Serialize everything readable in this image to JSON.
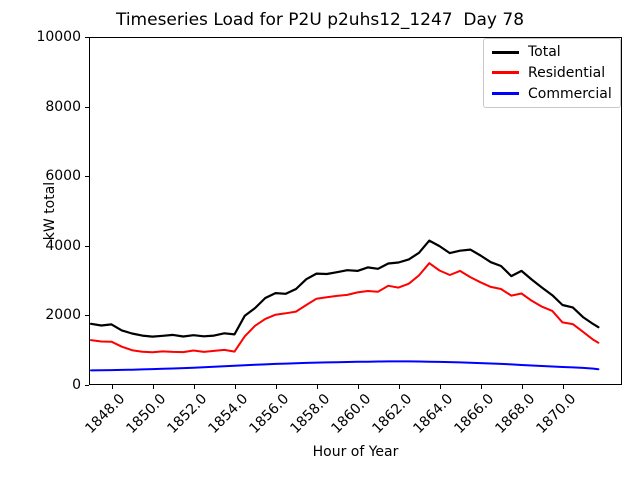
{
  "chart_data": {
    "type": "line",
    "title": "Timeseries Load for P2U p2uhs12_1247  Day 78",
    "xlabel": "Hour of Year",
    "ylabel": "kW total",
    "xlim": [
      1846.9,
      1872.9
    ],
    "ylim": [
      0,
      10000
    ],
    "grid": false,
    "legend_position": "upper right",
    "xticks": {
      "values": [
        1848,
        1850,
        1852,
        1854,
        1856,
        1858,
        1860,
        1862,
        1864,
        1866,
        1868,
        1870
      ],
      "labels": [
        "1848.0",
        "1850.0",
        "1852.0",
        "1854.0",
        "1856.0",
        "1858.0",
        "1860.0",
        "1862.0",
        "1864.0",
        "1866.0",
        "1868.0",
        "1870.0"
      ]
    },
    "yticks": {
      "values": [
        0,
        2000,
        4000,
        6000,
        8000,
        10000
      ],
      "labels": [
        "0",
        "2000",
        "4000",
        "6000",
        "8000",
        "10000"
      ]
    },
    "x": [
      1847.0,
      1847.5,
      1848.0,
      1848.5,
      1849.0,
      1849.5,
      1850.0,
      1850.5,
      1851.0,
      1851.5,
      1852.0,
      1852.5,
      1853.0,
      1853.5,
      1854.0,
      1854.5,
      1855.0,
      1855.5,
      1856.0,
      1856.5,
      1857.0,
      1857.5,
      1858.0,
      1858.5,
      1859.0,
      1859.5,
      1860.0,
      1860.5,
      1861.0,
      1861.5,
      1862.0,
      1862.5,
      1863.0,
      1863.5,
      1864.0,
      1864.5,
      1865.0,
      1865.5,
      1866.0,
      1866.5,
      1867.0,
      1867.5,
      1868.0,
      1868.5,
      1869.0,
      1869.5,
      1870.0,
      1870.5,
      1871.0,
      1871.5,
      1871.75
    ],
    "series": [
      {
        "name": "Total",
        "color": "#000000",
        "line_width": 2.2,
        "values": [
          1760,
          1710,
          1740,
          1570,
          1480,
          1420,
          1390,
          1415,
          1440,
          1395,
          1430,
          1400,
          1420,
          1485,
          1455,
          1990,
          2210,
          2500,
          2640,
          2620,
          2760,
          3040,
          3200,
          3190,
          3240,
          3300,
          3280,
          3380,
          3340,
          3490,
          3520,
          3610,
          3800,
          4150,
          3990,
          3790,
          3860,
          3890,
          3720,
          3530,
          3420,
          3130,
          3280,
          3030,
          2800,
          2580,
          2300,
          2230,
          1950,
          1750,
          1660
        ]
      },
      {
        "name": "Residential",
        "color": "#ff0000",
        "line_width": 2,
        "values": [
          1290,
          1250,
          1245,
          1100,
          1000,
          955,
          940,
          965,
          950,
          945,
          990,
          950,
          980,
          1010,
          960,
          1400,
          1700,
          1900,
          2020,
          2060,
          2110,
          2300,
          2480,
          2520,
          2560,
          2590,
          2660,
          2700,
          2680,
          2850,
          2800,
          2910,
          3150,
          3500,
          3290,
          3160,
          3280,
          3100,
          2950,
          2820,
          2760,
          2570,
          2630,
          2420,
          2250,
          2130,
          1800,
          1750,
          1530,
          1300,
          1215
        ]
      },
      {
        "name": "Commercial",
        "color": "#0000ff",
        "line_width": 2,
        "values": [
          420,
          424,
          429,
          434,
          441,
          448,
          456,
          465,
          475,
          486,
          497,
          510,
          524,
          538,
          552,
          566,
          580,
          593,
          605,
          616,
          626,
          635,
          643,
          650,
          656,
          661,
          666,
          670,
          674,
          677,
          679,
          678,
          675,
          670,
          664,
          657,
          649,
          640,
          630,
          618,
          605,
          591,
          576,
          561,
          546,
          532,
          518,
          505,
          492,
          470,
          455
        ]
      }
    ]
  }
}
